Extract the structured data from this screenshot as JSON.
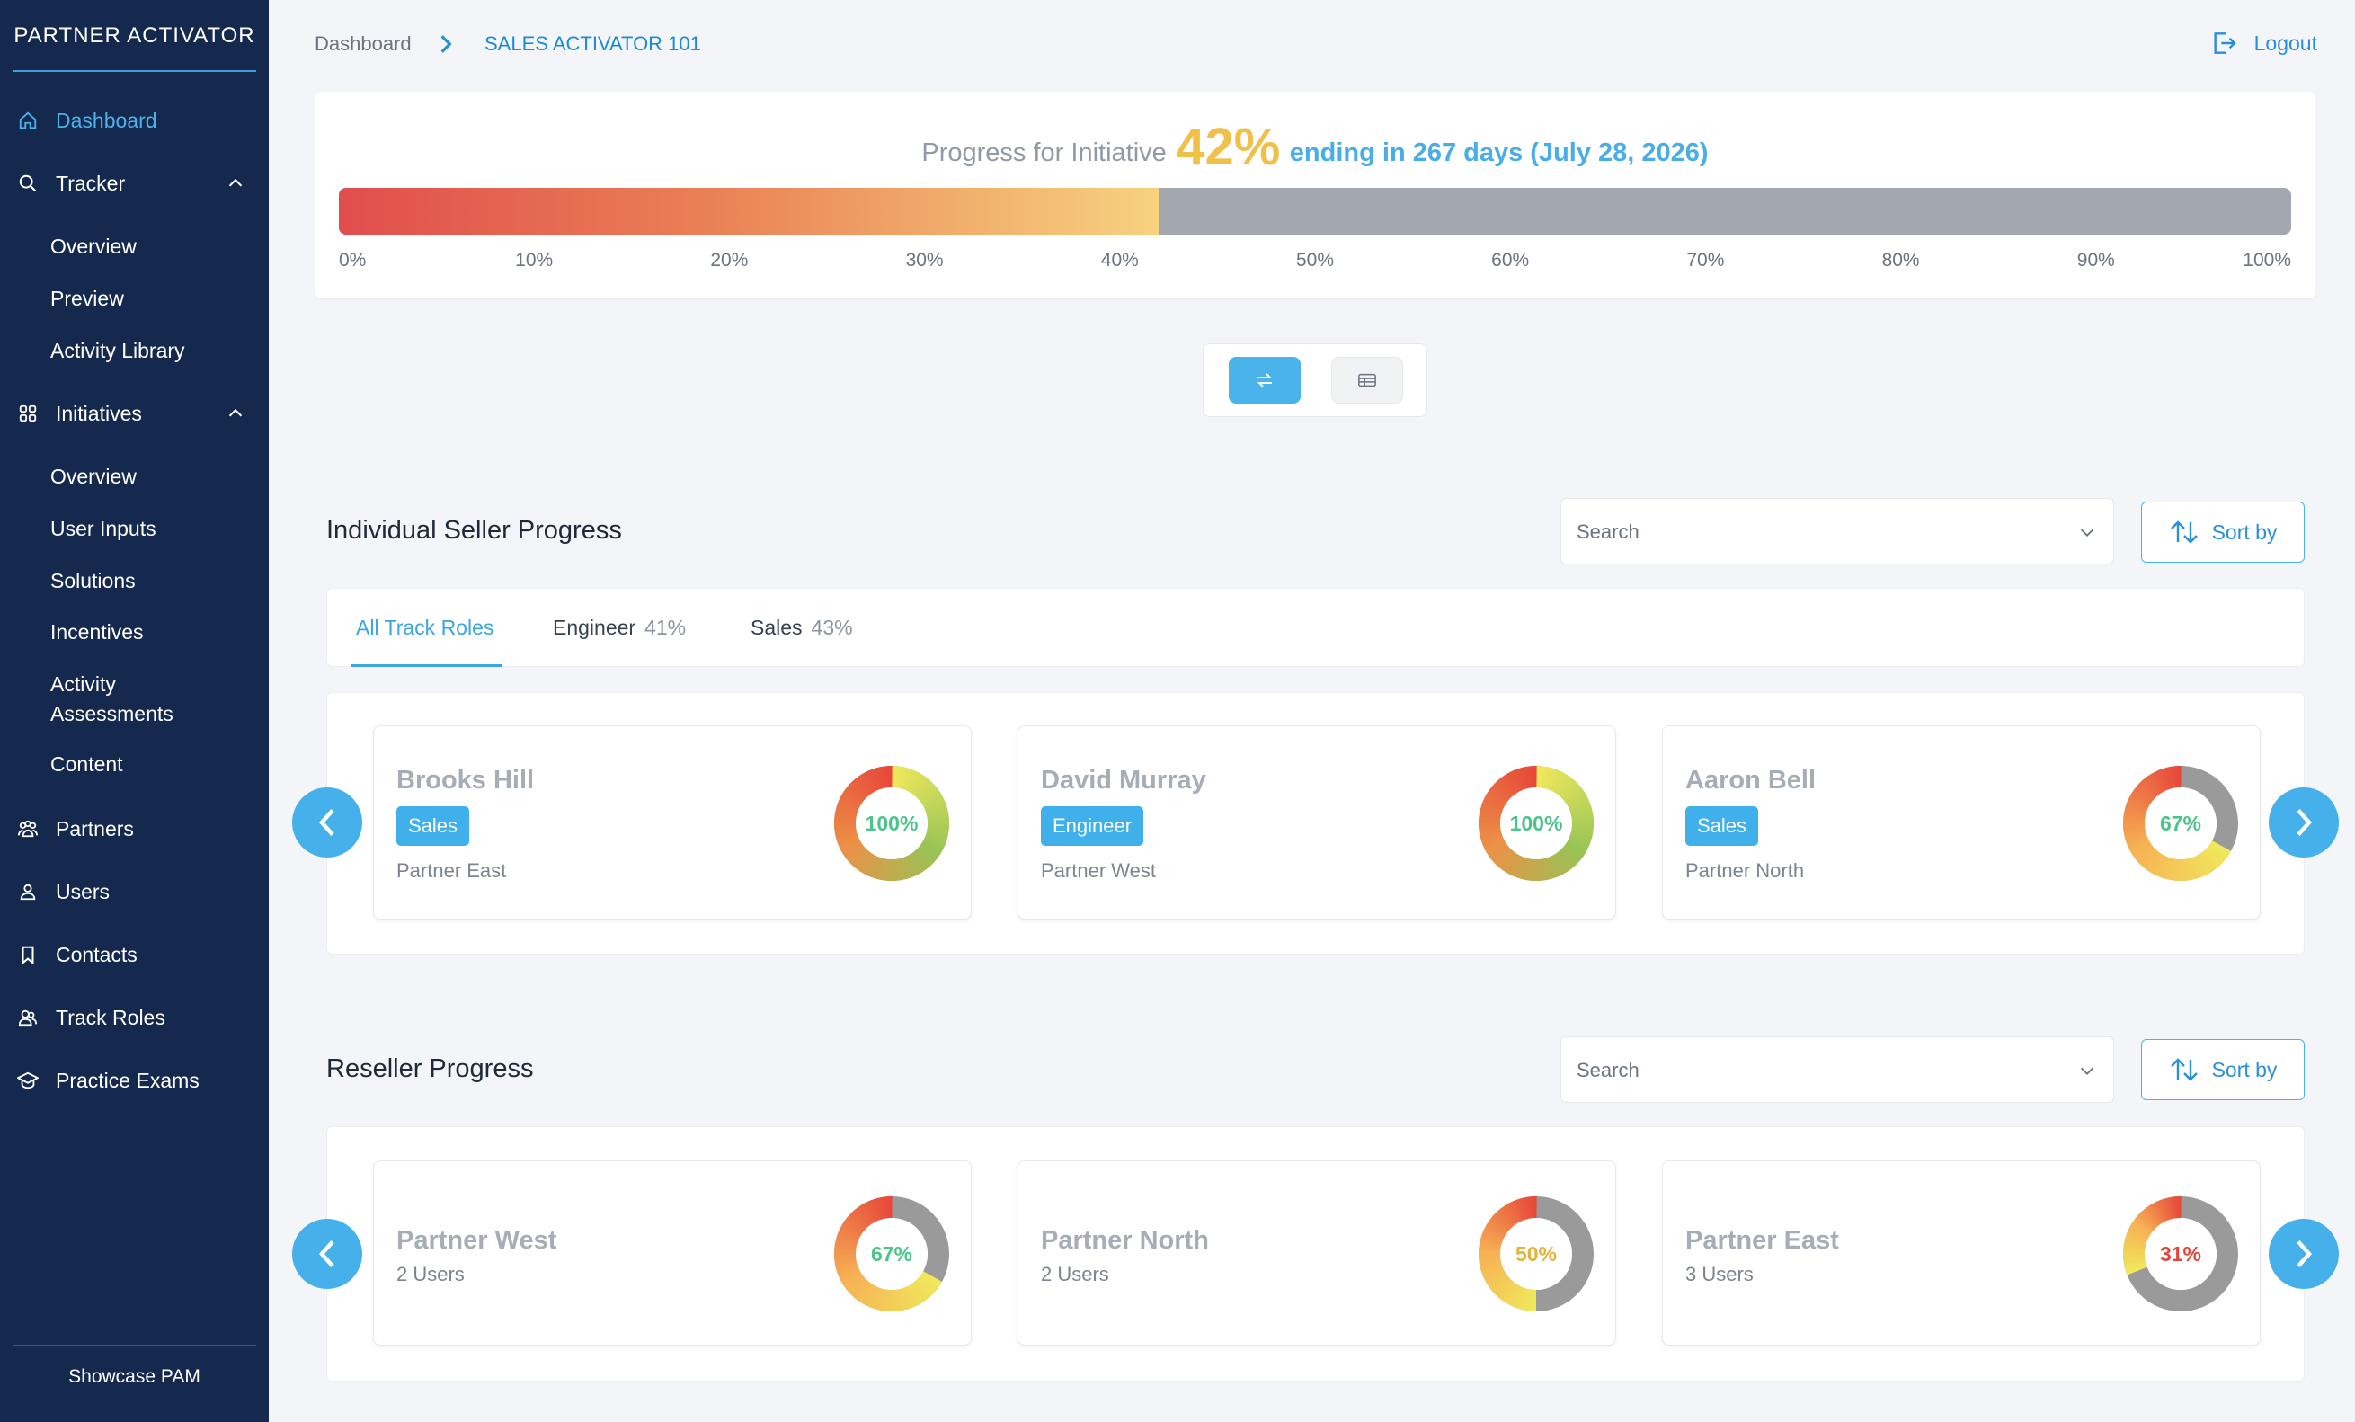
{
  "sidebar": {
    "logo": "PARTNER ACTIVATOR",
    "nav": {
      "dashboard": "Dashboard",
      "tracker": "Tracker",
      "tracker_sub": [
        "Overview",
        "Preview",
        "Activity Library"
      ],
      "initiatives": "Initiatives",
      "initiatives_sub": [
        "Overview",
        "User Inputs",
        "Solutions",
        "Incentives",
        "Activity Assessments",
        "Content"
      ],
      "partners": "Partners",
      "users": "Users",
      "contacts": "Contacts",
      "track_roles": "Track Roles",
      "practice_exams": "Practice Exams"
    },
    "footer": "Showcase PAM"
  },
  "header": {
    "breadcrumb": [
      "Dashboard",
      "SALES ACTIVATOR 101"
    ],
    "logout": "Logout"
  },
  "initiative": {
    "label": "Progress for Initiative",
    "percent_text": "42%",
    "percent_value": 0.42,
    "ending": "ending in 267 days (July 28, 2026)",
    "ticks": [
      "0%",
      "10%",
      "20%",
      "30%",
      "40%",
      "50%",
      "60%",
      "70%",
      "80%",
      "90%",
      "100%"
    ]
  },
  "seller_section": {
    "title": "Individual Seller Progress",
    "search_placeholder": "Search",
    "sort_label": "Sort by",
    "tabs": [
      {
        "label": "All Track Roles",
        "pct": ""
      },
      {
        "label": "Engineer",
        "pct": "41%"
      },
      {
        "label": "Sales",
        "pct": "43%"
      }
    ],
    "cards": [
      {
        "name": "Brooks Hill",
        "role": "Sales",
        "partner": "Partner East",
        "progress": "100%",
        "value": 1.0
      },
      {
        "name": "David Murray",
        "role": "Engineer",
        "partner": "Partner West",
        "progress": "100%",
        "value": 1.0
      },
      {
        "name": "Aaron Bell",
        "role": "Sales",
        "partner": "Partner North",
        "progress": "67%",
        "value": 0.67
      }
    ]
  },
  "reseller_section": {
    "title": "Reseller Progress",
    "search_placeholder": "Search",
    "sort_label": "Sort by",
    "cards": [
      {
        "name": "Partner West",
        "users": "2 Users",
        "progress": "67%",
        "value": 0.67
      },
      {
        "name": "Partner North",
        "users": "2 Users",
        "progress": "50%",
        "value": 0.5
      },
      {
        "name": "Partner East",
        "users": "3 Users",
        "progress": "31%",
        "value": 0.31
      }
    ]
  },
  "colors": {
    "sidebar_bg": "#15294f",
    "accent": "#4ab3ea",
    "progress_pct": "#f1c04b",
    "donut_track": "#9a9a9a",
    "label_high": "#4cc38a",
    "label_mid": "#e8b23a",
    "label_low": "#e0443a"
  }
}
